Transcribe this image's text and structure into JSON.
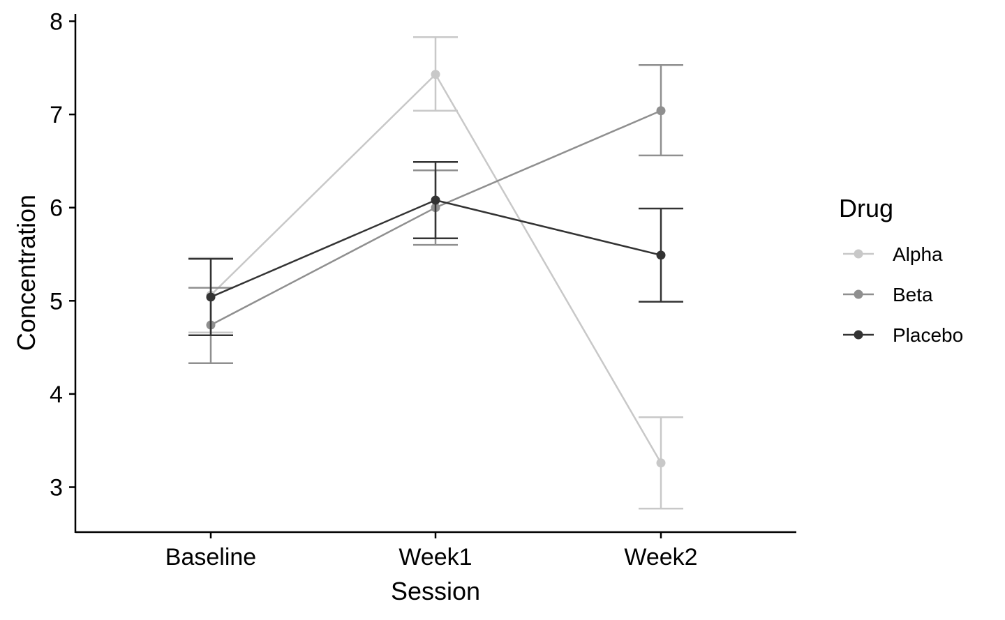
{
  "chart_data": {
    "type": "line",
    "title": "",
    "xlabel": "Session",
    "ylabel": "Concentration",
    "categories": [
      "Baseline",
      "Week1",
      "Week2"
    ],
    "ylim": [
      2.5,
      8.1
    ],
    "yticks": [
      3,
      4,
      5,
      6,
      7,
      8
    ],
    "grid": false,
    "error_bars": true,
    "legend": {
      "title": "Drug",
      "position": "right"
    },
    "series": [
      {
        "name": "Alpha",
        "color": "#c8c8c8",
        "values": [
          5.06,
          7.43,
          3.26
        ],
        "lower": [
          4.66,
          7.04,
          2.77
        ],
        "upper": [
          5.46,
          7.83,
          3.75
        ]
      },
      {
        "name": "Beta",
        "color": "#8f8f8f",
        "values": [
          4.74,
          6.0,
          7.04
        ],
        "lower": [
          4.33,
          5.6,
          6.56
        ],
        "upper": [
          5.14,
          6.4,
          7.53
        ]
      },
      {
        "name": "Placebo",
        "color": "#333333",
        "values": [
          5.04,
          6.08,
          5.49
        ],
        "lower": [
          4.63,
          5.67,
          4.99
        ],
        "upper": [
          5.45,
          6.49,
          5.99
        ]
      }
    ]
  }
}
